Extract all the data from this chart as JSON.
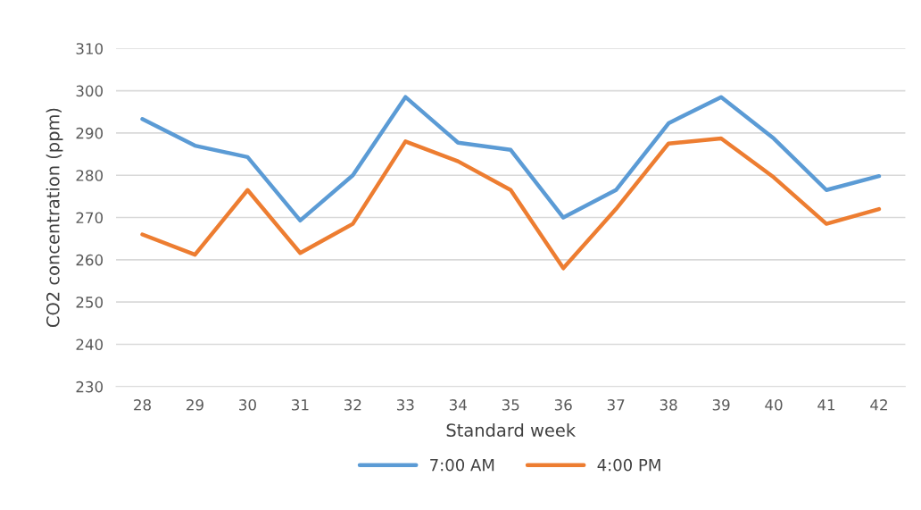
{
  "chart_data": {
    "type": "line",
    "categories": [
      "28",
      "29",
      "30",
      "31",
      "32",
      "33",
      "34",
      "35",
      "36",
      "37",
      "38",
      "39",
      "40",
      "41",
      "42"
    ],
    "series": [
      {
        "name": "7:00 AM",
        "color": "#5b9bd5",
        "values": [
          293.3,
          287,
          284.3,
          269.3,
          280,
          298.5,
          287.7,
          286,
          270,
          276.5,
          292.3,
          298.5,
          288.7,
          276.5,
          279.8
        ]
      },
      {
        "name": "4:00 PM",
        "color": "#ed7d31",
        "values": [
          266,
          261.2,
          276.5,
          261.6,
          268.5,
          288,
          283.3,
          276.5,
          258,
          272,
          287.5,
          288.7,
          279.5,
          268.5,
          272
        ]
      }
    ],
    "xlabel": "Standard week",
    "ylabel": "CO2 concentration (ppm)",
    "ylim": [
      230,
      310
    ],
    "yticks": [
      230,
      240,
      250,
      260,
      270,
      280,
      290,
      300,
      310
    ],
    "grid": "y",
    "legend": "bottom",
    "marker": "none",
    "line_style": "solid"
  }
}
